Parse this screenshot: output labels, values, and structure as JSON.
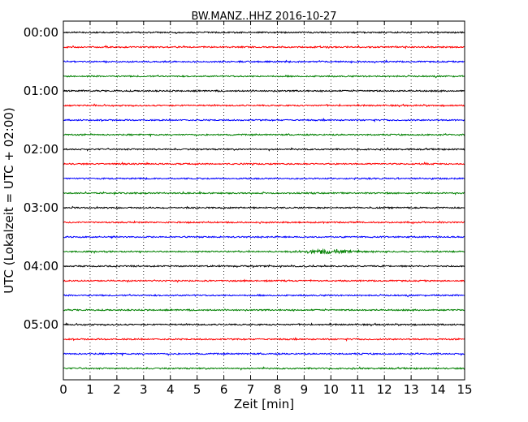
{
  "chart_data": {
    "type": "line",
    "title": "BW.MANZ..HHZ 2016-10-27",
    "xlabel": "Zeit  [min]",
    "ylabel": "UTC (Lokalzeit = UTC + 02:00)",
    "xlim": [
      0,
      15
    ],
    "x_ticks": [
      "0",
      "1",
      "2",
      "3",
      "4",
      "5",
      "6",
      "7",
      "8",
      "9",
      "10",
      "11",
      "12",
      "13",
      "14",
      "15"
    ],
    "y_ticks": [
      "00:00",
      "01:00",
      "02:00",
      "03:00",
      "04:00",
      "05:00"
    ],
    "grid": "vertical-dotted",
    "trace_interval_min": 15,
    "traces": [
      {
        "start": "00:00",
        "color": "#000000"
      },
      {
        "start": "00:15",
        "color": "#ff0000"
      },
      {
        "start": "00:30",
        "color": "#0000ff"
      },
      {
        "start": "00:45",
        "color": "#008000"
      },
      {
        "start": "01:00",
        "color": "#000000"
      },
      {
        "start": "01:15",
        "color": "#ff0000"
      },
      {
        "start": "01:30",
        "color": "#0000ff"
      },
      {
        "start": "01:45",
        "color": "#008000"
      },
      {
        "start": "02:00",
        "color": "#000000"
      },
      {
        "start": "02:15",
        "color": "#ff0000"
      },
      {
        "start": "02:30",
        "color": "#0000ff"
      },
      {
        "start": "02:45",
        "color": "#008000"
      },
      {
        "start": "03:00",
        "color": "#000000"
      },
      {
        "start": "03:15",
        "color": "#ff0000"
      },
      {
        "start": "03:30",
        "color": "#0000ff"
      },
      {
        "start": "03:45",
        "color": "#008000",
        "event_minute": 9.8
      },
      {
        "start": "04:00",
        "color": "#000000"
      },
      {
        "start": "04:15",
        "color": "#ff0000"
      },
      {
        "start": "04:30",
        "color": "#0000ff"
      },
      {
        "start": "04:45",
        "color": "#008000"
      },
      {
        "start": "05:00",
        "color": "#000000"
      },
      {
        "start": "05:15",
        "color": "#ff0000"
      },
      {
        "start": "05:30",
        "color": "#0000ff"
      },
      {
        "start": "05:45",
        "color": "#008000"
      }
    ]
  }
}
